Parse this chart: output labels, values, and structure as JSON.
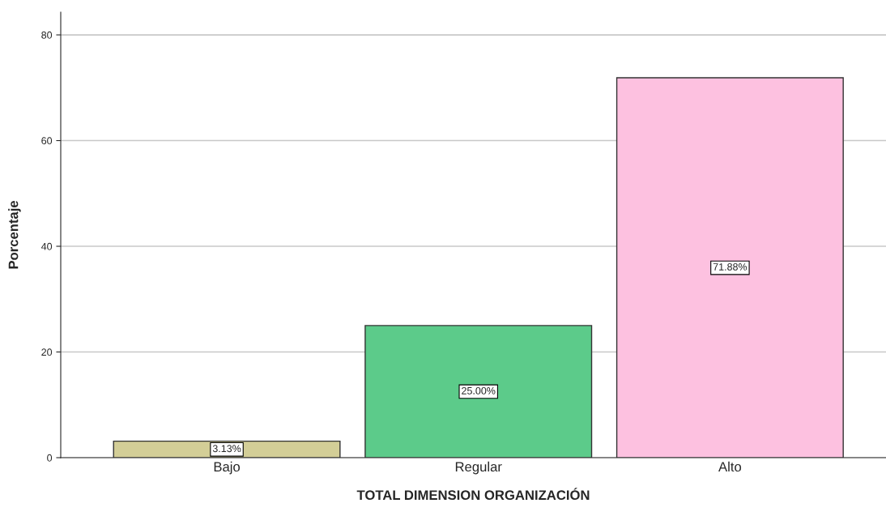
{
  "chart_data": {
    "type": "bar",
    "xlabel": "TOTAL DIMENSION ORGANIZACIÓN",
    "ylabel": "Porcentaje",
    "categories": [
      "Bajo",
      "Regular",
      "Alto"
    ],
    "values": [
      3.13,
      25.0,
      71.88
    ],
    "colors": [
      "#d3ce97",
      "#5ccb8a",
      "#fdc1e0"
    ],
    "value_labels": [
      "3.13%",
      "25.00%",
      "71.88%"
    ],
    "ylim": [
      0,
      84.3
    ],
    "yticks": [
      0,
      20,
      40,
      60,
      80
    ],
    "grid": "y",
    "legend": false
  }
}
